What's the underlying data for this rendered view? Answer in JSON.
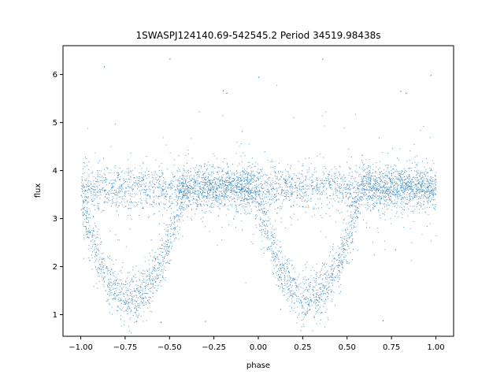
{
  "chart_data": {
    "type": "scatter",
    "title": "1SWASPJ124140.69-542545.2 Period 34519.98438s",
    "xlabel": "phase",
    "ylabel": "flux",
    "xlim": [
      -1.1,
      1.1
    ],
    "ylim": [
      0.55,
      6.6
    ],
    "xticks": [
      -1.0,
      -0.75,
      -0.5,
      -0.25,
      0.0,
      0.25,
      0.5,
      0.75,
      1.0
    ],
    "xtick_labels": [
      "−1.00",
      "−0.75",
      "−0.50",
      "−0.25",
      "0.00",
      "0.25",
      "0.50",
      "0.75",
      "1.00"
    ],
    "yticks": [
      1,
      2,
      3,
      4,
      5,
      6
    ],
    "ytick_labels": [
      "1",
      "2",
      "3",
      "4",
      "5",
      "6"
    ],
    "grid": false,
    "point_color": "#1f77b4",
    "baseline_flux": 3.65,
    "baseline_scatter": 0.22,
    "eclipses": [
      {
        "center_phase": -0.72,
        "min_flux": 1.35,
        "half_width": 0.3
      },
      {
        "center_phase": 0.28,
        "min_flux": 1.35,
        "half_width": 0.3
      }
    ],
    "outlier_points": [
      {
        "x": -0.5,
        "y": 6.33
      },
      {
        "x": -0.2,
        "y": 5.67
      },
      {
        "x": -0.18,
        "y": 5.62
      },
      {
        "x": 0.0,
        "y": 5.95
      },
      {
        "x": 0.8,
        "y": 5.66
      },
      {
        "x": 0.83,
        "y": 5.62
      },
      {
        "x": 0.97,
        "y": 5.99
      },
      {
        "x": -0.87,
        "y": 6.17
      },
      {
        "x": 0.36,
        "y": 6.33
      },
      {
        "x": -0.3,
        "y": 0.87
      },
      {
        "x": 0.7,
        "y": 0.88
      },
      {
        "x": -0.55,
        "y": 0.85
      }
    ]
  }
}
